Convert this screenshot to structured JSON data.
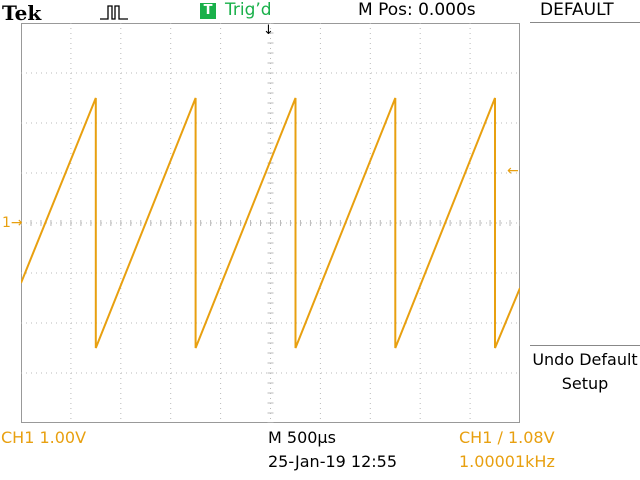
{
  "header": {
    "brand": "Tek",
    "acquisition_icon": "pulse-acquire-icon",
    "trigger_badge": "T",
    "trigger_status": "Trig’d",
    "main_position": "M Pos: 0.000s",
    "menu_title": "DEFAULT"
  },
  "side_menu": {
    "undo_label": "Undo Default Setup"
  },
  "markers": {
    "ch1_ground": "1",
    "ch1_ground_arrow": "→",
    "trigger_level_arrow": "←",
    "trigger_position_arrow": "↓"
  },
  "footer": {
    "ch1_scale": "CH1  1.00V",
    "timebase": "M 500µs",
    "date": "25-Jan-19 12:55",
    "trigger_info": "CH1 ∕ 1.08V",
    "frequency": "1.00001kHz"
  },
  "colors": {
    "channel1": "#e8a010",
    "trigger_green": "#19b04a",
    "grid": "#bbbbbb"
  },
  "chart_data": {
    "type": "line",
    "waveform": "sawtooth",
    "x_units": "div",
    "y_units": "V",
    "xlim": [
      0,
      10
    ],
    "ylim": [
      -4,
      4
    ],
    "x_divisions": 10,
    "y_divisions": 8,
    "time_per_div": "500µs",
    "volts_per_div": "1.00V",
    "series": [
      {
        "points": [
          [
            0,
            -1.2
          ],
          [
            1.5,
            2.5
          ],
          [
            1.5,
            -2.5
          ],
          [
            3.5,
            2.5
          ],
          [
            3.5,
            -2.5
          ],
          [
            5.5,
            2.5
          ],
          [
            5.5,
            -2.5
          ],
          [
            7.5,
            2.5
          ],
          [
            7.5,
            -2.5
          ],
          [
            9.5,
            2.5
          ],
          [
            9.5,
            -2.5
          ],
          [
            10,
            -1.3
          ]
        ]
      }
    ]
  }
}
